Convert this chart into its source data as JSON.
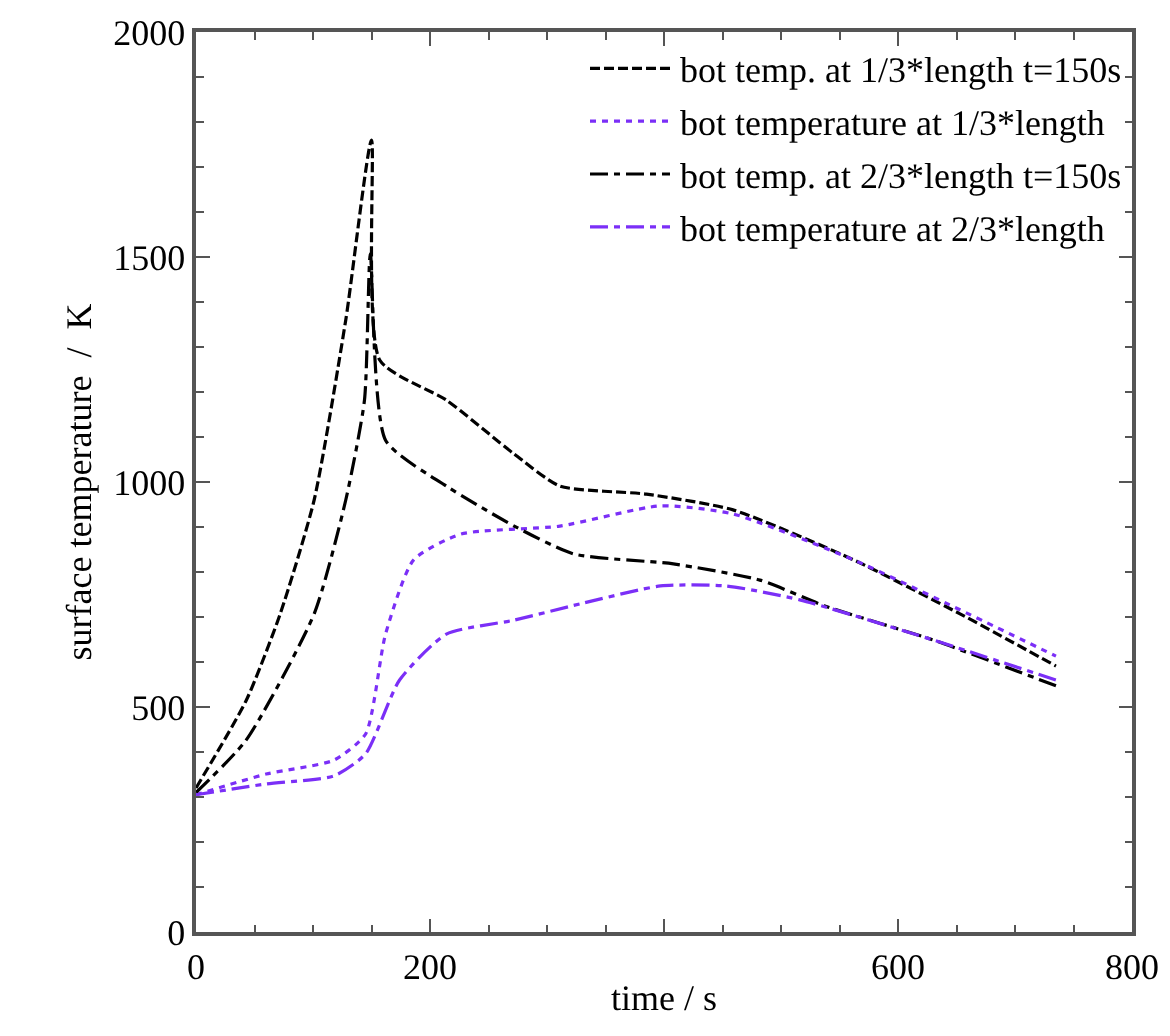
{
  "chart_data": {
    "type": "line",
    "xlabel": "time / s",
    "ylabel": "surface temperature  /  K",
    "xlim": [
      0,
      800
    ],
    "xticks": [
      0,
      200,
      {
        "value": 400,
        "label": null
      },
      600,
      800
    ],
    "ylim": [
      0,
      2000
    ],
    "yticks": [
      0,
      500,
      1000,
      1500,
      2000
    ],
    "grid": false,
    "legend": "top right",
    "marker": "none",
    "series": [
      {
        "name": "bot temp. at 1/3*length t=150s",
        "color": "#000000",
        "line_style": "dashed",
        "x": [
          0,
          43,
          72,
          101,
          128,
          150,
          157,
          214,
          272,
          311,
          385,
          459,
          562,
          653,
          735
        ],
        "values": [
          320,
          515,
          707,
          960,
          1360,
          1760,
          1271,
          1182,
          1062,
          991,
          973,
          938,
          827,
          707,
          591
        ]
      },
      {
        "name": "bot temperature at 1/3*length",
        "color": "#7b2ff7",
        "line_style": "dotted",
        "x": [
          0,
          60,
          118,
          145,
          162,
          186,
          226,
          311,
          397,
          459,
          562,
          653,
          735
        ],
        "values": [
          305,
          351,
          382,
          440,
          662,
          827,
          884,
          902,
          947,
          929,
          827,
          716,
          613
        ]
      },
      {
        "name": "bot temp. at 2/3*length t=150s",
        "color": "#000000",
        "line_style": "dashdot",
        "x": [
          0,
          43,
          101,
          128,
          144,
          149,
          162,
          214,
          272,
          323,
          408,
          482,
          538,
          630,
          735
        ],
        "values": [
          310,
          427,
          707,
          960,
          1182,
          1507,
          1093,
          991,
          902,
          840,
          818,
          782,
          724,
          649,
          547
        ]
      },
      {
        "name": "bot temperature at 2/3*length",
        "color": "#7b2ff7",
        "line_style": "dashdot",
        "x": [
          0,
          60,
          118,
          145,
          174,
          214,
          272,
          328,
          397,
          453,
          516,
          630,
          735
        ],
        "values": [
          305,
          329,
          347,
          396,
          560,
          662,
          693,
          729,
          769,
          769,
          738,
          649,
          560
        ]
      }
    ]
  }
}
